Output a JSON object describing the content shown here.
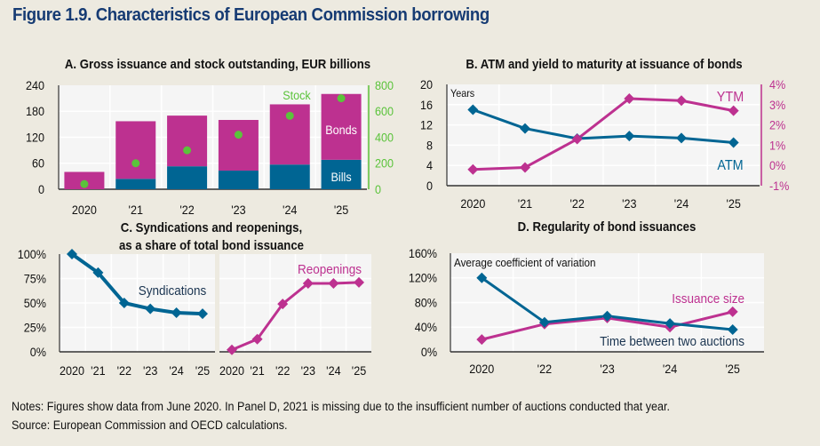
{
  "figure": {
    "title": "Figure 1.9. Characteristics of European Commission borrowing",
    "notes": "Notes: Figures show data from June 2020. In Panel D, 2021 is missing due to the insufficient number of auctions conducted that year.",
    "source": "Source: European Commission and OECD calculations."
  },
  "colors": {
    "blue": "#006593",
    "magenta": "#bd3190",
    "green": "#5bc33b",
    "plot_bg": "#f5f5f5",
    "page_bg": "#edeae0"
  },
  "chart_data": [
    {
      "id": "A",
      "type": "bar",
      "title": "A. Gross issuance and stock outstanding, EUR billions",
      "categories": [
        "2020",
        "'21",
        "'22",
        "'23",
        "'24",
        "'25"
      ],
      "stacked": true,
      "series": [
        {
          "name": "Bills",
          "axis": "left",
          "values": [
            0,
            24,
            53,
            43,
            57,
            68
          ]
        },
        {
          "name": "Bonds",
          "axis": "left",
          "values": [
            40,
            133,
            117,
            117,
            139,
            152
          ]
        },
        {
          "name": "Stock",
          "axis": "right",
          "kind": "scatter",
          "values": [
            40,
            200,
            300,
            420,
            565,
            700
          ]
        }
      ],
      "ylim": [
        0,
        240
      ],
      "yticks": [
        "0",
        "60",
        "120",
        "180",
        "240"
      ],
      "y2lim": [
        0,
        800
      ],
      "y2ticks": [
        "0",
        "200",
        "400",
        "600",
        "800"
      ],
      "labels": {
        "stock": "Stock",
        "bonds": "Bonds",
        "bills": "Bills"
      },
      "grid": true
    },
    {
      "id": "B",
      "type": "line",
      "title": "B. ATM and yield to maturity at issuance of bonds",
      "categories": [
        "2020",
        "'21",
        "'22",
        "'23",
        "'24",
        "'25"
      ],
      "series": [
        {
          "name": "ATM",
          "axis": "left",
          "values": [
            15.0,
            11.3,
            9.3,
            9.8,
            9.4,
            8.5
          ]
        },
        {
          "name": "YTM",
          "axis": "right",
          "values": [
            -0.2,
            -0.1,
            1.3,
            3.3,
            3.2,
            2.7
          ]
        }
      ],
      "ylabel": "Years",
      "ylim": [
        0,
        20
      ],
      "yticks": [
        "0",
        "4",
        "8",
        "12",
        "16",
        "20"
      ],
      "y2lim": [
        -1,
        4
      ],
      "y2ticks": [
        "-1%",
        "0%",
        "1%",
        "2%",
        "3%",
        "4%"
      ],
      "grid": true
    },
    {
      "id": "C",
      "type": "line",
      "title": "C. Syndications and reopenings,",
      "subtitle": "as a share of total bond issuance",
      "categories": [
        "2020",
        "'21",
        "'22",
        "'23",
        "'24",
        "'25"
      ],
      "series": [
        {
          "name": "Syndications",
          "values": [
            100,
            81,
            50,
            44,
            40,
            39
          ]
        },
        {
          "name": "Reopenings",
          "values": [
            2,
            13,
            49,
            70,
            70,
            71
          ]
        }
      ],
      "ylim": [
        0,
        100
      ],
      "yticks": [
        "0%",
        "25%",
        "50%",
        "75%",
        "100%"
      ],
      "grid": true
    },
    {
      "id": "D",
      "type": "line",
      "title": "D. Regularity of bond issuances",
      "categories": [
        "2020",
        "'22",
        "'23",
        "'24",
        "'25"
      ],
      "series": [
        {
          "name": "Time between two auctions",
          "values": [
            120,
            48,
            58,
            46,
            36
          ]
        },
        {
          "name": "Issuance size",
          "values": [
            20,
            45,
            55,
            40,
            65
          ]
        }
      ],
      "annotation": "Average coefficient of variation",
      "ylim": [
        0,
        160
      ],
      "yticks": [
        "0%",
        "40%",
        "80%",
        "120%",
        "160%"
      ],
      "grid": true
    }
  ]
}
